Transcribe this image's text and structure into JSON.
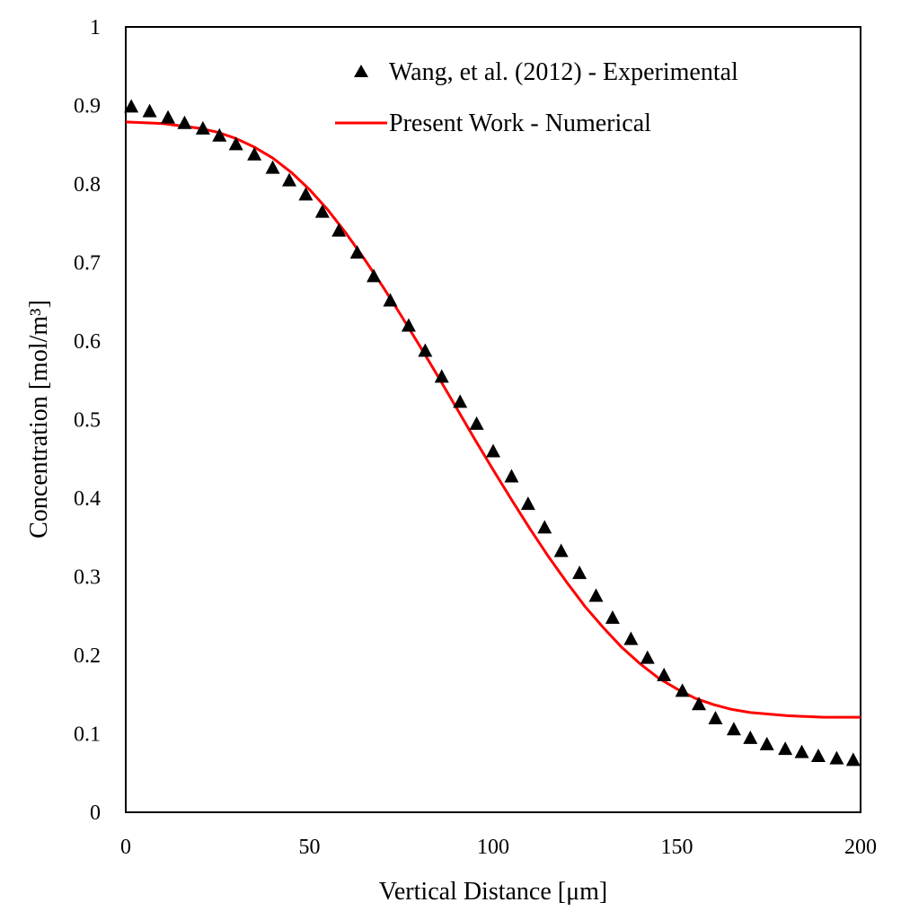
{
  "chart_data": {
    "type": "scatter",
    "title": "",
    "xlabel": "Vertical Distance [μm]",
    "ylabel": "Concentration [mol/m³]",
    "xlim": [
      0,
      200
    ],
    "ylim": [
      0,
      1
    ],
    "xticks": [
      0,
      50,
      100,
      150,
      200
    ],
    "yticks": [
      0,
      0.1,
      0.2,
      0.3,
      0.4,
      0.5,
      0.6,
      0.7,
      0.8,
      0.9,
      1
    ],
    "xtick_labels": [
      "0",
      "50",
      "100",
      "150",
      "200"
    ],
    "ytick_labels": [
      "0",
      "0.1",
      "0.2",
      "0.3",
      "0.4",
      "0.5",
      "0.6",
      "0.7",
      "0.8",
      "0.9",
      "1"
    ],
    "grid": false,
    "legend_position": "top-right",
    "series": [
      {
        "name": "Wang, et al. (2012) - Experimental",
        "kind": "scatter",
        "marker": "triangle",
        "color": "#000000",
        "x": [
          1.5,
          6.5,
          11.5,
          16,
          21,
          25.5,
          30,
          35,
          40,
          44.5,
          49,
          53.5,
          58,
          63,
          67.5,
          72,
          77,
          81.5,
          86,
          91,
          95.5,
          100,
          105,
          109.5,
          114,
          118.5,
          123.5,
          128,
          132.5,
          137.5,
          142,
          146.5,
          151.5,
          156,
          160.5,
          165.5,
          170,
          174.5,
          179.5,
          184,
          188.5,
          193.5,
          198
        ],
        "y": [
          0.899,
          0.893,
          0.885,
          0.878,
          0.871,
          0.862,
          0.851,
          0.838,
          0.821,
          0.805,
          0.787,
          0.765,
          0.741,
          0.713,
          0.683,
          0.652,
          0.62,
          0.588,
          0.555,
          0.523,
          0.495,
          0.46,
          0.428,
          0.393,
          0.363,
          0.333,
          0.305,
          0.276,
          0.248,
          0.221,
          0.197,
          0.175,
          0.155,
          0.138,
          0.12,
          0.106,
          0.095,
          0.087,
          0.081,
          0.077,
          0.072,
          0.069,
          0.067
        ]
      },
      {
        "name": "Present Work - Numerical",
        "kind": "line",
        "color": "#ff0000",
        "x": [
          0,
          10,
          20,
          25,
          30,
          35,
          40,
          45,
          50,
          55,
          60,
          65,
          70,
          75,
          80,
          85,
          90,
          95,
          100,
          105,
          110,
          115,
          120,
          125,
          130,
          135,
          140,
          145,
          150,
          155,
          160,
          165,
          170,
          175,
          180,
          185,
          190,
          195,
          200
        ],
        "y": [
          0.879,
          0.877,
          0.871,
          0.866,
          0.858,
          0.847,
          0.833,
          0.815,
          0.793,
          0.767,
          0.737,
          0.704,
          0.669,
          0.632,
          0.594,
          0.555,
          0.515,
          0.475,
          0.436,
          0.398,
          0.361,
          0.326,
          0.293,
          0.262,
          0.235,
          0.21,
          0.189,
          0.171,
          0.157,
          0.145,
          0.137,
          0.131,
          0.127,
          0.125,
          0.123,
          0.122,
          0.121,
          0.121,
          0.121
        ]
      }
    ]
  }
}
